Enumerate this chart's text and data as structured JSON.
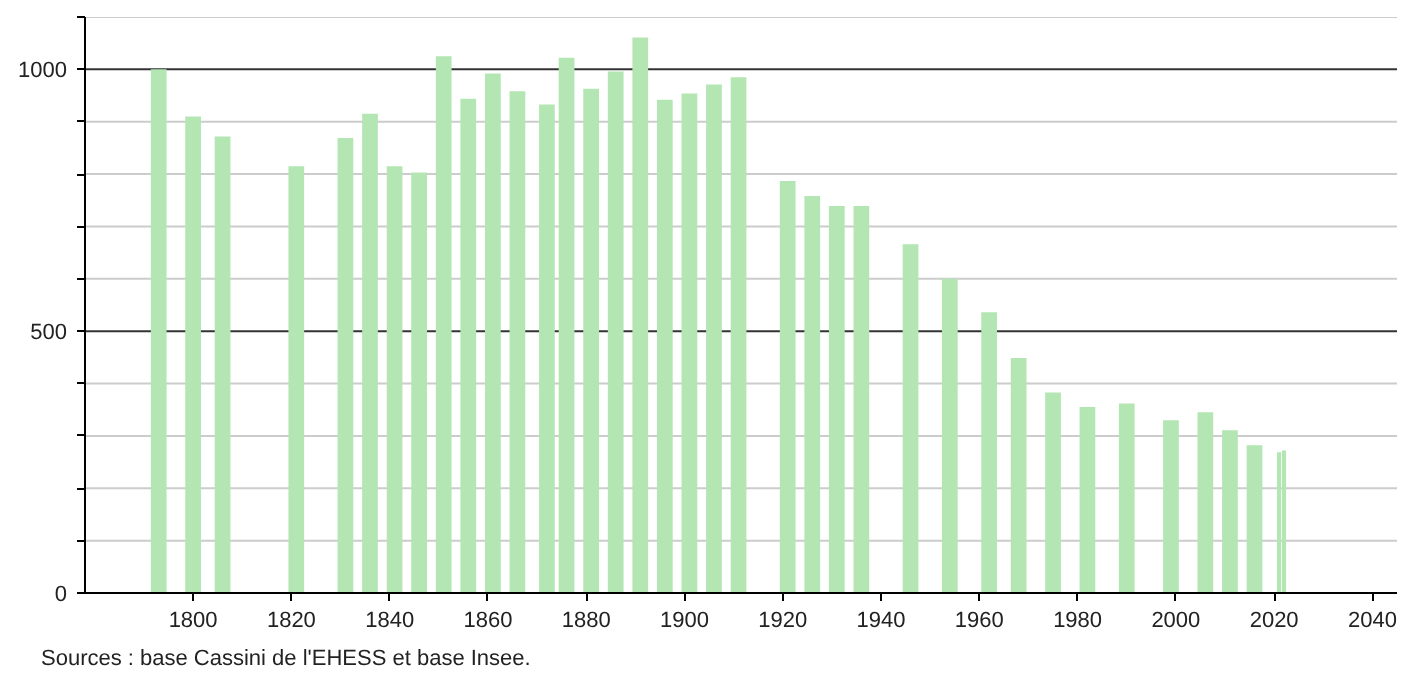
{
  "chart_data": {
    "type": "bar",
    "x": [
      1793,
      1800,
      1806,
      1821,
      1831,
      1836,
      1841,
      1846,
      1851,
      1856,
      1861,
      1866,
      1872,
      1876,
      1881,
      1886,
      1891,
      1896,
      1901,
      1906,
      1911,
      1921,
      1926,
      1931,
      1936,
      1946,
      1954,
      1962,
      1968,
      1975,
      1982,
      1990,
      1999,
      2006,
      2011,
      2016,
      2021,
      2022
    ],
    "values": [
      1000,
      910,
      872,
      815,
      869,
      915,
      815,
      803,
      1025,
      944,
      992,
      958,
      933,
      1022,
      963,
      996,
      1061,
      942,
      954,
      971,
      985,
      787,
      758,
      739,
      739,
      666,
      600,
      536,
      449,
      383,
      355,
      362,
      330,
      345,
      311,
      282,
      269,
      272
    ],
    "color": "#b3e6b3",
    "xlim": [
      1778,
      2045
    ],
    "xticks": [
      1800,
      1820,
      1840,
      1860,
      1880,
      1900,
      1920,
      1940,
      1960,
      1980,
      2000,
      2020,
      2040
    ],
    "ylim": [
      0,
      1100
    ],
    "yticks": [
      0,
      {
        "value": 100,
        "label": null
      },
      {
        "value": 200,
        "label": null
      },
      {
        "value": 300,
        "label": null
      },
      {
        "value": 400,
        "label": null
      },
      500,
      {
        "value": 600,
        "label": null
      },
      {
        "value": 700,
        "label": null
      },
      {
        "value": 800,
        "label": null
      },
      {
        "value": 900,
        "label": null
      },
      1000,
      {
        "value": 1100,
        "label": null
      }
    ],
    "grid": "y",
    "annotations": [
      "Sources : base Cassini de l'EHESS et base Insee."
    ]
  }
}
